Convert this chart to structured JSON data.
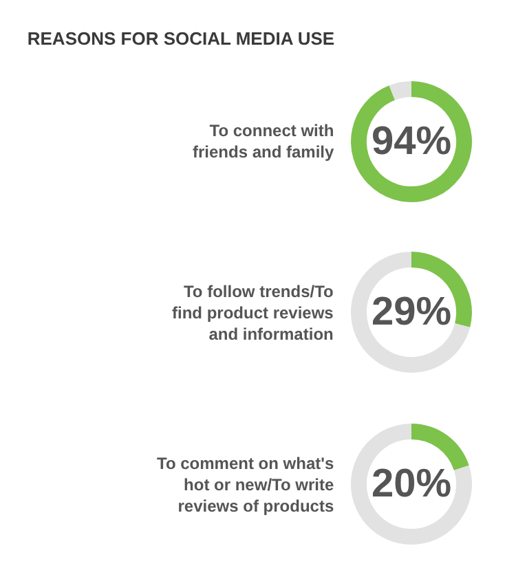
{
  "chart_data": [
    {
      "type": "donut",
      "title": "REASONS FOR SOCIAL MEDIA USE",
      "annotations": [
        "To connect with friends and family"
      ],
      "categories": [
        null,
        null
      ],
      "values": [
        94,
        6
      ],
      "colors": [
        "#7dc24b",
        "#e2e2e2"
      ],
      "value_labels": [
        "94%",
        null
      ]
    },
    {
      "type": "donut",
      "annotations": [
        "To follow trends/To find product reviews and information"
      ],
      "categories": [
        null,
        null
      ],
      "values": [
        29,
        71
      ],
      "colors": [
        "#7dc24b",
        "#e2e2e2"
      ],
      "value_labels": [
        "29%",
        null
      ]
    },
    {
      "type": "donut",
      "annotations": [
        "To comment on what's hot or new/To write reviews of products"
      ],
      "categories": [
        null,
        null
      ],
      "values": [
        20,
        80
      ],
      "colors": [
        "#7dc24b",
        "#e2e2e2"
      ],
      "value_labels": [
        "20%",
        null
      ]
    }
  ]
}
